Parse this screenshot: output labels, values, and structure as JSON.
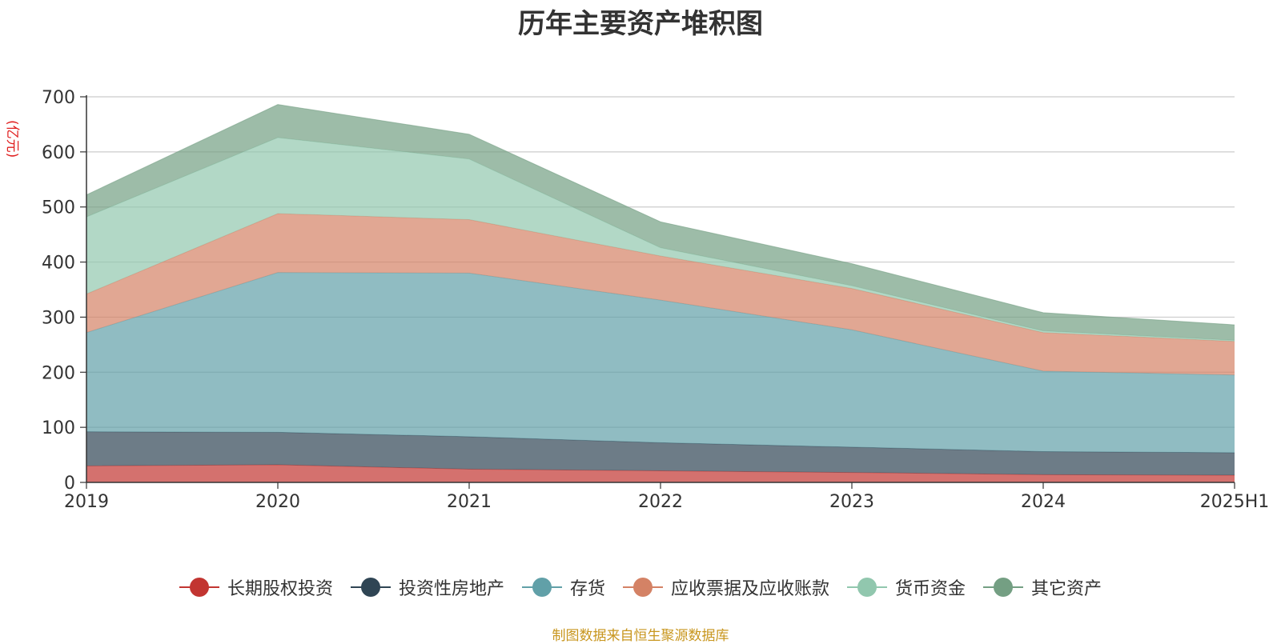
{
  "chart_data": {
    "type": "area",
    "stacked": true,
    "title": "历年主要资产堆积图",
    "unit": "(亿元)",
    "categories": [
      "2019",
      "2020",
      "2021",
      "2022",
      "2023",
      "2024",
      "2025H1"
    ],
    "ylim": [
      0,
      700
    ],
    "yticks": [
      0,
      100,
      200,
      300,
      400,
      500,
      600,
      700
    ],
    "grid": true,
    "legend_position": "bottom",
    "series": [
      {
        "name": "长期股权投资",
        "color": "#c23531",
        "values": [
          30,
          32,
          24,
          21,
          18,
          14,
          13
        ]
      },
      {
        "name": "投资性房地产",
        "color": "#2f4554",
        "values": [
          62,
          59,
          59,
          51,
          46,
          42,
          41
        ]
      },
      {
        "name": "存货",
        "color": "#61a0a8",
        "values": [
          180,
          290,
          297,
          259,
          213,
          146,
          141
        ]
      },
      {
        "name": "应收票据及应收账款",
        "color": "#d48265",
        "values": [
          70,
          107,
          97,
          80,
          75,
          70,
          61
        ]
      },
      {
        "name": "货币资金",
        "color": "#91c7ae",
        "values": [
          140,
          138,
          110,
          15,
          5,
          3,
          2
        ]
      },
      {
        "name": "其它资产",
        "color": "#749f83",
        "values": [
          40,
          60,
          45,
          47,
          40,
          33,
          28
        ]
      }
    ]
  },
  "footer": {
    "source": "制图数据来自恒生聚源数据库"
  }
}
